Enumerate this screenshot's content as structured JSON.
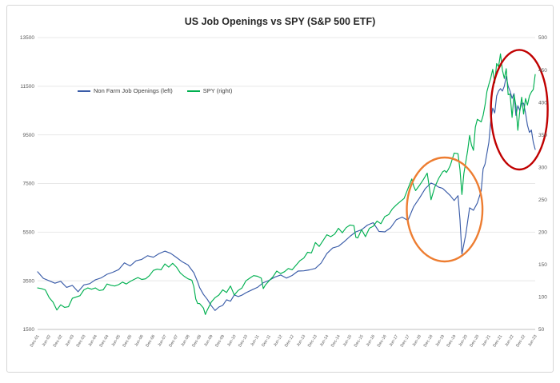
{
  "chart_data": {
    "type": "line",
    "title": "US Job Openings vs SPY (S&P 500 ETF)",
    "grid": "horizontal",
    "legend": {
      "position": "inside-top-left"
    },
    "colors": {
      "gridline": "#E8E8E8",
      "axis": "#BFBFBF",
      "tick_text": "#595959",
      "jobs_line": "#3A5CA8",
      "spy_line": "#00B050",
      "covid_ellipse": "#ED7D31",
      "divergence_ellipse": "#C00000"
    },
    "x_axis": {
      "unit": "date",
      "min": 2001.917,
      "max": 2023.417,
      "tick_step_years": 0.5,
      "tick_labels": [
        "Dec-01",
        "Jun-02",
        "Dec-02",
        "Jun-03",
        "Dec-03",
        "Jun-04",
        "Dec-04",
        "Jun-05",
        "Dec-05",
        "Jun-06",
        "Dec-06",
        "Jun-07",
        "Dec-07",
        "Jun-08",
        "Dec-08",
        "Jun-09",
        "Dec-09",
        "Jun-10",
        "Dec-10",
        "Jun-11",
        "Dec-11",
        "Jun-12",
        "Dec-12",
        "Jun-13",
        "Dec-13",
        "Jun-14",
        "Dec-14",
        "Jun-15",
        "Dec-15",
        "Jun-16",
        "Dec-16",
        "Jun-17",
        "Dec-17",
        "Jun-18",
        "Dec-18",
        "Jun-19",
        "Dec-19",
        "Jun-20",
        "Dec-20",
        "Jun-21",
        "Dec-21",
        "Jun-22",
        "Dec-22",
        "Jun-23"
      ]
    },
    "left_axis": {
      "min": 1500,
      "max": 13500,
      "ticks": [
        "13500",
        "11500",
        "9500",
        "7500",
        "5500",
        "3500",
        "1500"
      ]
    },
    "right_axis": {
      "min": 50,
      "max": 500,
      "ticks": [
        "500",
        "450",
        "400",
        "350",
        "300",
        "250",
        "200",
        "150",
        "100",
        "50"
      ]
    },
    "series": [
      {
        "id": "job-openings",
        "name": "Non Farm Job Openings (left)",
        "axis": "left",
        "color": "#3A5CA8",
        "points": [
          [
            2001.917,
            3870
          ],
          [
            2002.167,
            3600
          ],
          [
            2002.417,
            3500
          ],
          [
            2002.667,
            3400
          ],
          [
            2002.917,
            3480
          ],
          [
            2003.167,
            3230
          ],
          [
            2003.417,
            3310
          ],
          [
            2003.667,
            3050
          ],
          [
            2003.917,
            3330
          ],
          [
            2004.167,
            3380
          ],
          [
            2004.417,
            3540
          ],
          [
            2004.667,
            3620
          ],
          [
            2004.917,
            3770
          ],
          [
            2005.167,
            3850
          ],
          [
            2005.417,
            3960
          ],
          [
            2005.667,
            4240
          ],
          [
            2005.917,
            4110
          ],
          [
            2006.167,
            4320
          ],
          [
            2006.417,
            4380
          ],
          [
            2006.667,
            4530
          ],
          [
            2006.917,
            4470
          ],
          [
            2007.167,
            4620
          ],
          [
            2007.417,
            4720
          ],
          [
            2007.667,
            4630
          ],
          [
            2007.917,
            4460
          ],
          [
            2008.167,
            4280
          ],
          [
            2008.417,
            4150
          ],
          [
            2008.667,
            3830
          ],
          [
            2008.833,
            3450
          ],
          [
            2008.917,
            3220
          ],
          [
            2009.083,
            2940
          ],
          [
            2009.25,
            2740
          ],
          [
            2009.417,
            2480
          ],
          [
            2009.583,
            2280
          ],
          [
            2009.75,
            2420
          ],
          [
            2009.917,
            2490
          ],
          [
            2010.083,
            2720
          ],
          [
            2010.25,
            2660
          ],
          [
            2010.417,
            2920
          ],
          [
            2010.583,
            2850
          ],
          [
            2010.75,
            2910
          ],
          [
            2010.917,
            3010
          ],
          [
            2011.167,
            3120
          ],
          [
            2011.417,
            3230
          ],
          [
            2011.667,
            3420
          ],
          [
            2011.917,
            3520
          ],
          [
            2012.167,
            3650
          ],
          [
            2012.417,
            3740
          ],
          [
            2012.667,
            3610
          ],
          [
            2012.917,
            3720
          ],
          [
            2013.167,
            3900
          ],
          [
            2013.417,
            3910
          ],
          [
            2013.667,
            3950
          ],
          [
            2013.917,
            4010
          ],
          [
            2014.167,
            4230
          ],
          [
            2014.417,
            4620
          ],
          [
            2014.667,
            4850
          ],
          [
            2014.917,
            4920
          ],
          [
            2015.167,
            5110
          ],
          [
            2015.417,
            5330
          ],
          [
            2015.667,
            5510
          ],
          [
            2015.917,
            5600
          ],
          [
            2016.167,
            5790
          ],
          [
            2016.417,
            5890
          ],
          [
            2016.667,
            5530
          ],
          [
            2016.917,
            5510
          ],
          [
            2017.167,
            5680
          ],
          [
            2017.417,
            6010
          ],
          [
            2017.667,
            6120
          ],
          [
            2017.917,
            5980
          ],
          [
            2018.167,
            6550
          ],
          [
            2018.417,
            6900
          ],
          [
            2018.667,
            7290
          ],
          [
            2018.917,
            7520
          ],
          [
            2019.083,
            7450
          ],
          [
            2019.25,
            7350
          ],
          [
            2019.417,
            7300
          ],
          [
            2019.583,
            7150
          ],
          [
            2019.75,
            7000
          ],
          [
            2019.917,
            6800
          ],
          [
            2020.083,
            7000
          ],
          [
            2020.167,
            6000
          ],
          [
            2020.25,
            4600
          ],
          [
            2020.333,
            5000
          ],
          [
            2020.417,
            5400
          ],
          [
            2020.583,
            6500
          ],
          [
            2020.75,
            6400
          ],
          [
            2020.917,
            6700
          ],
          [
            2021.083,
            7200
          ],
          [
            2021.167,
            8100
          ],
          [
            2021.25,
            8300
          ],
          [
            2021.417,
            9200
          ],
          [
            2021.5,
            10100
          ],
          [
            2021.583,
            10600
          ],
          [
            2021.667,
            10400
          ],
          [
            2021.75,
            11100
          ],
          [
            2021.833,
            11300
          ],
          [
            2021.917,
            11400
          ],
          [
            2022.0,
            11300
          ],
          [
            2022.083,
            11500
          ],
          [
            2022.167,
            11900
          ],
          [
            2022.25,
            11500
          ],
          [
            2022.333,
            11300
          ],
          [
            2022.417,
            11000
          ],
          [
            2022.5,
            11200
          ],
          [
            2022.583,
            10300
          ],
          [
            2022.667,
            10700
          ],
          [
            2022.75,
            10500
          ],
          [
            2022.833,
            10800
          ],
          [
            2022.917,
            10800
          ],
          [
            2023.0,
            10400
          ],
          [
            2023.083,
            9900
          ],
          [
            2023.167,
            9600
          ],
          [
            2023.25,
            9700
          ],
          [
            2023.333,
            9200
          ],
          [
            2023.417,
            8900
          ]
        ]
      },
      {
        "id": "spy",
        "name": "SPY (right)",
        "axis": "right",
        "color": "#00B050",
        "points": [
          [
            2001.917,
            114
          ],
          [
            2002.083,
            113
          ],
          [
            2002.25,
            111
          ],
          [
            2002.417,
            99
          ],
          [
            2002.583,
            92
          ],
          [
            2002.75,
            80
          ],
          [
            2002.917,
            88
          ],
          [
            2003.083,
            84
          ],
          [
            2003.25,
            85
          ],
          [
            2003.417,
            98
          ],
          [
            2003.583,
            100
          ],
          [
            2003.75,
            102
          ],
          [
            2003.917,
            111
          ],
          [
            2004.083,
            114
          ],
          [
            2004.25,
            112
          ],
          [
            2004.417,
            114
          ],
          [
            2004.583,
            110
          ],
          [
            2004.75,
            111
          ],
          [
            2004.917,
            120
          ],
          [
            2005.083,
            118
          ],
          [
            2005.25,
            117
          ],
          [
            2005.417,
            119
          ],
          [
            2005.583,
            123
          ],
          [
            2005.75,
            120
          ],
          [
            2005.917,
            124
          ],
          [
            2006.083,
            127
          ],
          [
            2006.25,
            130
          ],
          [
            2006.417,
            127
          ],
          [
            2006.583,
            128
          ],
          [
            2006.75,
            133
          ],
          [
            2006.917,
            141
          ],
          [
            2007.083,
            143
          ],
          [
            2007.25,
            142
          ],
          [
            2007.417,
            151
          ],
          [
            2007.583,
            146
          ],
          [
            2007.75,
            152
          ],
          [
            2007.917,
            146
          ],
          [
            2008.083,
            137
          ],
          [
            2008.25,
            132
          ],
          [
            2008.417,
            128
          ],
          [
            2008.583,
            126
          ],
          [
            2008.667,
            116
          ],
          [
            2008.75,
            97
          ],
          [
            2008.833,
            90
          ],
          [
            2008.917,
            90
          ],
          [
            2009.083,
            83
          ],
          [
            2009.167,
            73
          ],
          [
            2009.25,
            80
          ],
          [
            2009.417,
            92
          ],
          [
            2009.583,
            99
          ],
          [
            2009.75,
            103
          ],
          [
            2009.917,
            111
          ],
          [
            2010.083,
            107
          ],
          [
            2010.25,
            117
          ],
          [
            2010.417,
            103
          ],
          [
            2010.583,
            110
          ],
          [
            2010.75,
            114
          ],
          [
            2010.917,
            125
          ],
          [
            2011.083,
            129
          ],
          [
            2011.25,
            133
          ],
          [
            2011.417,
            132
          ],
          [
            2011.583,
            129
          ],
          [
            2011.667,
            113
          ],
          [
            2011.75,
            118
          ],
          [
            2011.917,
            125
          ],
          [
            2012.083,
            131
          ],
          [
            2012.25,
            140
          ],
          [
            2012.417,
            136
          ],
          [
            2012.583,
            139
          ],
          [
            2012.75,
            144
          ],
          [
            2012.917,
            142
          ],
          [
            2013.083,
            149
          ],
          [
            2013.25,
            156
          ],
          [
            2013.417,
            160
          ],
          [
            2013.583,
            169
          ],
          [
            2013.75,
            168
          ],
          [
            2013.917,
            184
          ],
          [
            2014.083,
            178
          ],
          [
            2014.25,
            187
          ],
          [
            2014.417,
            196
          ],
          [
            2014.583,
            193
          ],
          [
            2014.75,
            197
          ],
          [
            2014.917,
            206
          ],
          [
            2015.083,
            199
          ],
          [
            2015.25,
            207
          ],
          [
            2015.417,
            211
          ],
          [
            2015.583,
            210
          ],
          [
            2015.667,
            192
          ],
          [
            2015.75,
            191
          ],
          [
            2015.917,
            204
          ],
          [
            2016.083,
            193
          ],
          [
            2016.25,
            206
          ],
          [
            2016.417,
            209
          ],
          [
            2016.583,
            217
          ],
          [
            2016.75,
            213
          ],
          [
            2016.917,
            224
          ],
          [
            2017.083,
            227
          ],
          [
            2017.25,
            236
          ],
          [
            2017.417,
            242
          ],
          [
            2017.583,
            247
          ],
          [
            2017.75,
            252
          ],
          [
            2017.917,
            267
          ],
          [
            2018.083,
            282
          ],
          [
            2018.167,
            271
          ],
          [
            2018.25,
            264
          ],
          [
            2018.417,
            272
          ],
          [
            2018.583,
            281
          ],
          [
            2018.75,
            291
          ],
          [
            2018.833,
            271
          ],
          [
            2018.917,
            250
          ],
          [
            2019.083,
            270
          ],
          [
            2019.25,
            283
          ],
          [
            2019.417,
            293
          ],
          [
            2019.5,
            295
          ],
          [
            2019.583,
            292
          ],
          [
            2019.667,
            297
          ],
          [
            2019.75,
            303
          ],
          [
            2019.917,
            322
          ],
          [
            2020.083,
            321
          ],
          [
            2020.167,
            296
          ],
          [
            2020.25,
            258
          ],
          [
            2020.333,
            290
          ],
          [
            2020.417,
            308
          ],
          [
            2020.5,
            326
          ],
          [
            2020.583,
            349
          ],
          [
            2020.667,
            334
          ],
          [
            2020.75,
            326
          ],
          [
            2020.833,
            362
          ],
          [
            2020.917,
            374
          ],
          [
            2021.083,
            370
          ],
          [
            2021.167,
            380
          ],
          [
            2021.25,
            396
          ],
          [
            2021.333,
            417
          ],
          [
            2021.417,
            428
          ],
          [
            2021.5,
            438
          ],
          [
            2021.583,
            451
          ],
          [
            2021.667,
            430
          ],
          [
            2021.75,
            460
          ],
          [
            2021.833,
            455
          ],
          [
            2021.917,
            475
          ],
          [
            2022.0,
            450
          ],
          [
            2022.083,
            437
          ],
          [
            2022.167,
            452
          ],
          [
            2022.25,
            412
          ],
          [
            2022.333,
            413
          ],
          [
            2022.417,
            377
          ],
          [
            2022.5,
            412
          ],
          [
            2022.583,
            395
          ],
          [
            2022.667,
            357
          ],
          [
            2022.75,
            386
          ],
          [
            2022.833,
            408
          ],
          [
            2022.917,
            382
          ],
          [
            2023.0,
            406
          ],
          [
            2023.083,
            396
          ],
          [
            2023.167,
            410
          ],
          [
            2023.25,
            416
          ],
          [
            2023.333,
            420
          ],
          [
            2023.417,
            443
          ]
        ]
      }
    ],
    "annotations": [
      {
        "name": "covid-dip-ellipse",
        "shape": "ellipse",
        "color": "#ED7D31",
        "cx": 0.818,
        "cy": 0.589,
        "rx": 0.076,
        "ry": 0.178
      },
      {
        "name": "divergence-ellipse",
        "shape": "ellipse",
        "color": "#C00000",
        "cx": 0.968,
        "cy": 0.247,
        "rx": 0.057,
        "ry": 0.205
      }
    ]
  }
}
